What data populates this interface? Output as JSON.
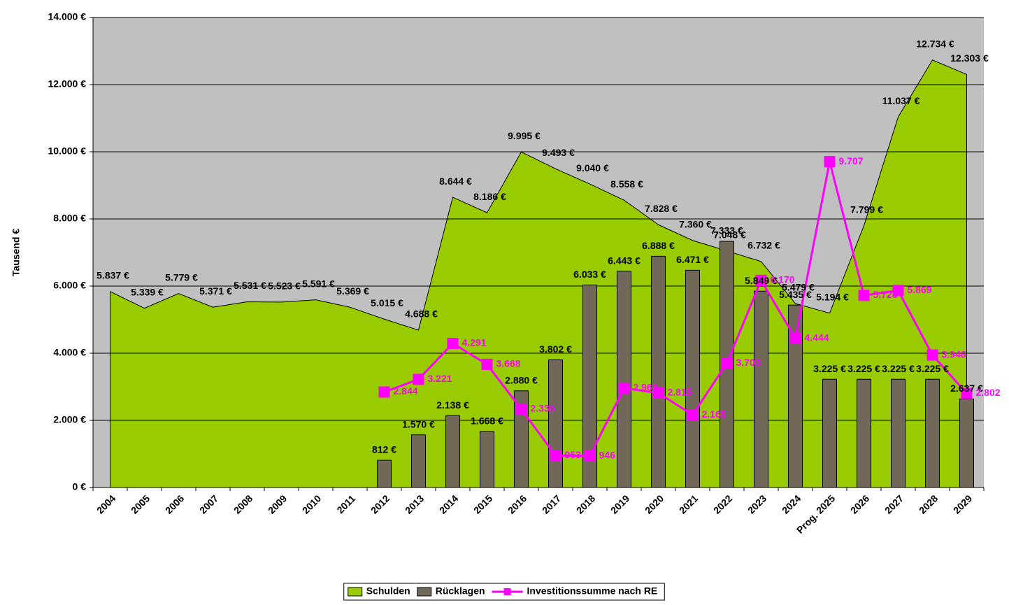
{
  "chart_data": {
    "type": "combo",
    "y_label": "Tausend €",
    "categories": [
      "2004",
      "2005",
      "2006",
      "2007",
      "2008",
      "2009",
      "2010",
      "2011",
      "2012",
      "2013",
      "2014",
      "2015",
      "2016",
      "2017",
      "2018",
      "2019",
      "2020",
      "2021",
      "2022",
      "2023",
      "2024",
      "Prog. 2025",
      "2026",
      "2027",
      "2028",
      "2029"
    ],
    "series": [
      {
        "name": "Schulden",
        "kind": "area",
        "color": "#99cc00",
        "values": [
          5837,
          5339,
          5779,
          5371,
          5531,
          5523,
          5591,
          5369,
          5015,
          4688,
          8644,
          8186,
          9995,
          9493,
          9040,
          8558,
          7828,
          7360,
          7048,
          6732,
          5479,
          5194,
          7799,
          11037,
          12734,
          12303
        ],
        "value_labels": [
          "5.837 €",
          "5.339 €",
          "5.779 €",
          "5.371 €",
          "5.531 €",
          "5.523 €",
          "5.591 €",
          "5.369 €",
          "5.015 €",
          "4.688 €",
          "8.644 €",
          "8.186 €",
          "9.995 €",
          "9.493 €",
          "9.040 €",
          "8.558 €",
          "7.828 €",
          "7.360 €",
          "7.048 €",
          "6.732 €",
          "5.479 €",
          "5.194 €",
          "7.799 €",
          "11.037 €",
          "12.734 €",
          "12.303 €"
        ]
      },
      {
        "name": "Rücklagen",
        "kind": "bar",
        "color": "#716858",
        "values": [
          null,
          null,
          null,
          null,
          null,
          null,
          null,
          null,
          812,
          1570,
          2138,
          1668,
          2880,
          3802,
          6033,
          6443,
          6888,
          6471,
          7333,
          5849,
          5435,
          3225,
          3225,
          3225,
          3225,
          2637
        ],
        "value_labels": [
          null,
          null,
          null,
          null,
          null,
          null,
          null,
          null,
          "812 €",
          "1.570 €",
          "2.138 €",
          "1.668 €",
          "2.880 €",
          "3.802 €",
          "6.033 €",
          "6.443 €",
          "6.888 €",
          "6.471 €",
          "7.333 €",
          "5.849 €",
          "5.435 €",
          "3.225 €",
          "3.225 €",
          "3.225 €",
          "3.225 €",
          "2.637 €"
        ]
      },
      {
        "name": "Investitionssumme nach RE",
        "kind": "line",
        "color": "#ff00ff",
        "values": [
          null,
          null,
          null,
          null,
          null,
          null,
          null,
          null,
          2844,
          3221,
          4291,
          3668,
          2335,
          953,
          946,
          2960,
          2815,
          2165,
          3703,
          6170,
          4444,
          9707,
          5723,
          5869,
          3946,
          2802
        ],
        "value_labels": [
          null,
          null,
          null,
          null,
          null,
          null,
          null,
          null,
          "2.844",
          "3.221",
          "4.291",
          "3.668",
          "2.335",
          "953",
          "946",
          "2.960",
          "2.815",
          "2.165",
          "3.703",
          "6.170",
          "4.444",
          "9.707",
          "5.723",
          "5.869",
          "3.946",
          "2.802"
        ]
      }
    ],
    "ylim": [
      0,
      14000
    ],
    "yticks": [
      {
        "value": 0,
        "label": "0 €"
      },
      {
        "value": 2000,
        "label": "2.000 €"
      },
      {
        "value": 4000,
        "label": "4.000 €"
      },
      {
        "value": 6000,
        "label": "6.000 €"
      },
      {
        "value": 8000,
        "label": "8.000 €"
      },
      {
        "value": 10000,
        "label": "10.000 €"
      },
      {
        "value": 12000,
        "label": "12.000 €"
      },
      {
        "value": 14000,
        "label": "14.000 €"
      }
    ],
    "grid": true,
    "legend": "bottom"
  }
}
